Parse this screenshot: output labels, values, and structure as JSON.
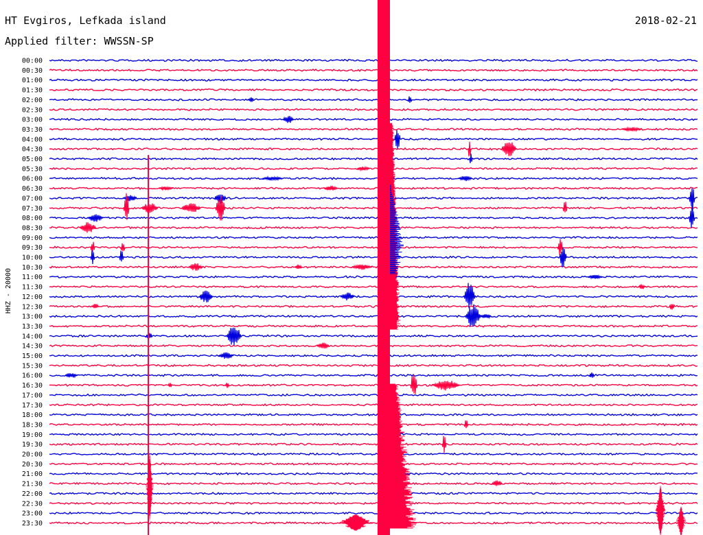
{
  "header": {
    "station": "HT Evgiros, Lefkada island",
    "filter": "Applied filter: WWSSN-SP",
    "date": "2018-02-21"
  },
  "axis": {
    "channel_label": "HHZ - 20000"
  },
  "colors": {
    "trace_a": "#0000dd",
    "trace_b": "#ff0040",
    "background": "#ffffff",
    "text": "#000000"
  },
  "rows": [
    {
      "time": "00:00"
    },
    {
      "time": "00:30"
    },
    {
      "time": "01:00"
    },
    {
      "time": "01:30"
    },
    {
      "time": "02:00"
    },
    {
      "time": "02:30"
    },
    {
      "time": "03:00"
    },
    {
      "time": "03:30"
    },
    {
      "time": "04:00"
    },
    {
      "time": "04:30"
    },
    {
      "time": "05:00"
    },
    {
      "time": "05:30"
    },
    {
      "time": "06:00"
    },
    {
      "time": "06:30"
    },
    {
      "time": "07:00"
    },
    {
      "time": "07:30"
    },
    {
      "time": "08:00"
    },
    {
      "time": "08:30"
    },
    {
      "time": "09:00"
    },
    {
      "time": "09:30"
    },
    {
      "time": "10:00"
    },
    {
      "time": "10:30"
    },
    {
      "time": "11:00"
    },
    {
      "time": "11:30"
    },
    {
      "time": "12:00"
    },
    {
      "time": "12:30"
    },
    {
      "time": "13:00"
    },
    {
      "time": "13:30"
    },
    {
      "time": "14:00"
    },
    {
      "time": "14:30"
    },
    {
      "time": "15:00"
    },
    {
      "time": "15:30"
    },
    {
      "time": "16:00"
    },
    {
      "time": "16:30"
    },
    {
      "time": "17:00"
    },
    {
      "time": "17:30"
    },
    {
      "time": "18:00"
    },
    {
      "time": "18:30"
    },
    {
      "time": "19:00"
    },
    {
      "time": "19:30"
    },
    {
      "time": "20:00"
    },
    {
      "time": "20:30"
    },
    {
      "time": "21:00"
    },
    {
      "time": "21:30"
    },
    {
      "time": "22:00"
    },
    {
      "time": "22:30"
    },
    {
      "time": "23:00"
    },
    {
      "time": "23:30"
    }
  ]
}
